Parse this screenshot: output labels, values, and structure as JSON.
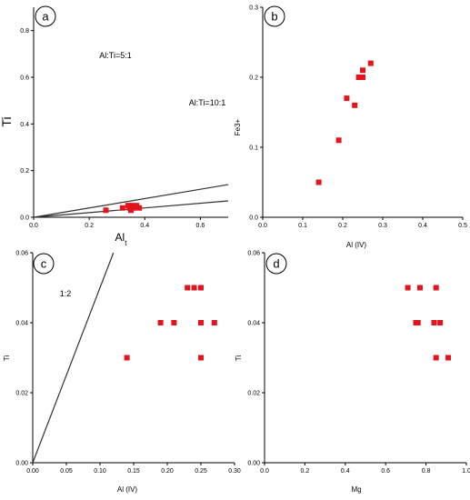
{
  "chart_data": [
    {
      "type": "scatter",
      "panel_label": "a",
      "xlabel": "Al",
      "xlabel_subscript": "t",
      "ylabel": "Ti",
      "xlim": [
        0,
        0.7
      ],
      "ylim": [
        0,
        0.9
      ],
      "xticks": [
        0.0,
        0.2,
        0.4,
        0.6
      ],
      "yticks": [
        0.0,
        0.2,
        0.4,
        0.6,
        0.8
      ],
      "x_tick_labels": [
        "0.0",
        "0.2",
        "0.4",
        "0.6"
      ],
      "y_tick_labels": [
        "0.0",
        "0.2",
        "0.4",
        "0.6",
        "0.8"
      ],
      "grid": false,
      "points": [
        {
          "x": 0.26,
          "y": 0.03
        },
        {
          "x": 0.32,
          "y": 0.04
        },
        {
          "x": 0.34,
          "y": 0.05
        },
        {
          "x": 0.345,
          "y": 0.04
        },
        {
          "x": 0.35,
          "y": 0.03
        },
        {
          "x": 0.355,
          "y": 0.05
        },
        {
          "x": 0.36,
          "y": 0.04
        },
        {
          "x": 0.37,
          "y": 0.05
        },
        {
          "x": 0.38,
          "y": 0.04
        }
      ],
      "reference_lines": [
        {
          "label": "Al:Ti=5:1",
          "slope": 0.2
        },
        {
          "label": "Al:Ti=10:1",
          "slope": 0.1
        }
      ]
    },
    {
      "type": "scatter",
      "panel_label": "b",
      "xlabel": "Al (IV)",
      "ylabel": "Fe3+",
      "xlim": [
        0,
        0.5
      ],
      "ylim": [
        0,
        0.3
      ],
      "xticks": [
        0.0,
        0.1,
        0.2,
        0.3,
        0.4,
        0.5
      ],
      "yticks": [
        0.0,
        0.1,
        0.2,
        0.3
      ],
      "x_tick_labels": [
        "0.0",
        "0.1",
        "0.2",
        "0.3",
        "0.4",
        "0.5"
      ],
      "y_tick_labels": [
        "0.0",
        "0.1",
        "0.2",
        "0.3"
      ],
      "grid": false,
      "points": [
        {
          "x": 0.14,
          "y": 0.05
        },
        {
          "x": 0.19,
          "y": 0.11
        },
        {
          "x": 0.21,
          "y": 0.17
        },
        {
          "x": 0.23,
          "y": 0.16
        },
        {
          "x": 0.24,
          "y": 0.2
        },
        {
          "x": 0.25,
          "y": 0.2
        },
        {
          "x": 0.25,
          "y": 0.21
        },
        {
          "x": 0.27,
          "y": 0.22
        }
      ],
      "reference_lines": []
    },
    {
      "type": "scatter",
      "panel_label": "c",
      "xlabel": "Al (IV)",
      "ylabel": "Ti",
      "xlim": [
        0,
        0.3
      ],
      "ylim": [
        0,
        0.06
      ],
      "xticks": [
        0.0,
        0.05,
        0.1,
        0.15,
        0.2,
        0.25,
        0.3
      ],
      "yticks": [
        0.0,
        0.02,
        0.04,
        0.06
      ],
      "x_tick_labels": [
        "0.00",
        "0.05",
        "0.10",
        "0.15",
        "0.20",
        "0.25",
        "0.30"
      ],
      "y_tick_labels": [
        "0.00",
        "0.02",
        "0.04",
        "0.06"
      ],
      "grid": false,
      "points": [
        {
          "x": 0.14,
          "y": 0.03
        },
        {
          "x": 0.19,
          "y": 0.04
        },
        {
          "x": 0.21,
          "y": 0.04
        },
        {
          "x": 0.23,
          "y": 0.05
        },
        {
          "x": 0.24,
          "y": 0.05
        },
        {
          "x": 0.25,
          "y": 0.05
        },
        {
          "x": 0.25,
          "y": 0.04
        },
        {
          "x": 0.25,
          "y": 0.03
        },
        {
          "x": 0.27,
          "y": 0.04
        }
      ],
      "reference_lines": [
        {
          "label": "1:2",
          "slope": 0.5
        }
      ]
    },
    {
      "type": "scatter",
      "panel_label": "d",
      "xlabel": "Mg",
      "ylabel": "Ti",
      "xlim": [
        0,
        1.0
      ],
      "ylim": [
        0,
        0.06
      ],
      "xticks": [
        0.0,
        0.2,
        0.4,
        0.6,
        0.8,
        1.0
      ],
      "yticks": [
        0.0,
        0.02,
        0.04,
        0.06
      ],
      "x_tick_labels": [
        "0.0",
        "0.2",
        "0.4",
        "0.6",
        "0.8",
        "1.0"
      ],
      "y_tick_labels": [
        "0.00",
        "0.02",
        "0.04",
        "0.06"
      ],
      "grid": false,
      "points": [
        {
          "x": 0.71,
          "y": 0.05
        },
        {
          "x": 0.75,
          "y": 0.04
        },
        {
          "x": 0.76,
          "y": 0.04
        },
        {
          "x": 0.77,
          "y": 0.05
        },
        {
          "x": 0.84,
          "y": 0.04
        },
        {
          "x": 0.85,
          "y": 0.05
        },
        {
          "x": 0.85,
          "y": 0.03
        },
        {
          "x": 0.87,
          "y": 0.04
        },
        {
          "x": 0.91,
          "y": 0.03
        }
      ],
      "reference_lines": []
    }
  ],
  "colors": {
    "marker": "#e3141b",
    "axis": "#000000",
    "reference_line": "#333333"
  }
}
